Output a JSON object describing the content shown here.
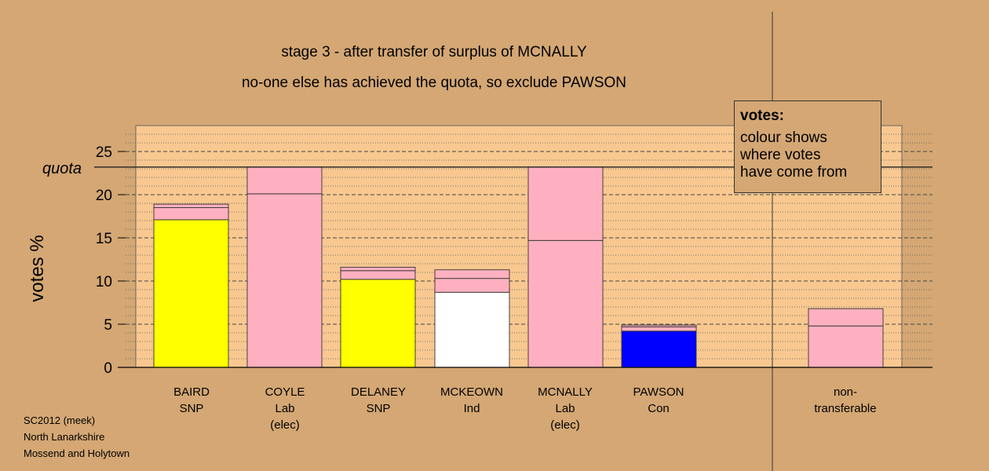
{
  "title_lines": [
    "stage 3 - after transfer of surplus of MCNALLY",
    "no-one else has achieved the quota, so exclude PAWSON"
  ],
  "info_box": {
    "heading": "votes:",
    "lines": [
      "colour shows",
      "where votes",
      "have come from"
    ]
  },
  "footer": [
    "SC2012 (meek)",
    "North Lanarkshire",
    "Mossend and Holytown"
  ],
  "colors": {
    "background": "#d4a774",
    "plot_area": "#f8c890",
    "snp": "#ffff00",
    "lab": "#ffb0c0",
    "ind": "#ffffff",
    "con": "#0000ff"
  },
  "chart_data": {
    "type": "bar",
    "ylabel": "votes %",
    "ylim": [
      0,
      28
    ],
    "yticks": [
      0,
      5,
      10,
      15,
      20,
      25
    ],
    "quota": 23.2,
    "quota_label": "quota",
    "grid": true,
    "categories": [
      {
        "name": "BAIRD",
        "party": "SNP",
        "note": ""
      },
      {
        "name": "COYLE",
        "party": "Lab",
        "note": "(elec)"
      },
      {
        "name": "DELANEY",
        "party": "SNP",
        "note": ""
      },
      {
        "name": "MCKEOWN",
        "party": "Ind",
        "note": ""
      },
      {
        "name": "MCNALLY",
        "party": "Lab",
        "note": "(elec)"
      },
      {
        "name": "PAWSON",
        "party": "Con",
        "note": ""
      },
      {
        "name": "non-",
        "party": "transferable",
        "note": ""
      }
    ],
    "stacks": [
      [
        {
          "value": 17.1,
          "color": "#ffff00"
        },
        {
          "value": 1.4,
          "color": "#ffb0c0"
        },
        {
          "value": 0.4,
          "color": "#ffb0c0"
        }
      ],
      [
        {
          "value": 20.1,
          "color": "#ffb0c0"
        },
        {
          "value": 3.1,
          "color": "#ffb0c0"
        }
      ],
      [
        {
          "value": 10.2,
          "color": "#ffff00"
        },
        {
          "value": 1.0,
          "color": "#ffb0c0"
        },
        {
          "value": 0.4,
          "color": "#ffb0c0"
        }
      ],
      [
        {
          "value": 8.7,
          "color": "#ffffff"
        },
        {
          "value": 1.6,
          "color": "#ffb0c0"
        },
        {
          "value": 1.0,
          "color": "#ffb0c0"
        }
      ],
      [
        {
          "value": 14.7,
          "color": "#ffb0c0"
        },
        {
          "value": 8.5,
          "color": "#ffb0c0"
        }
      ],
      [
        {
          "value": 4.2,
          "color": "#0000ff"
        },
        {
          "value": 0.5,
          "color": "#ffb0c0"
        },
        {
          "value": 0.2,
          "color": "#ffb0c0"
        }
      ],
      [
        {
          "value": 4.8,
          "color": "#ffb0c0"
        },
        {
          "value": 2.0,
          "color": "#ffb0c0"
        }
      ]
    ]
  }
}
